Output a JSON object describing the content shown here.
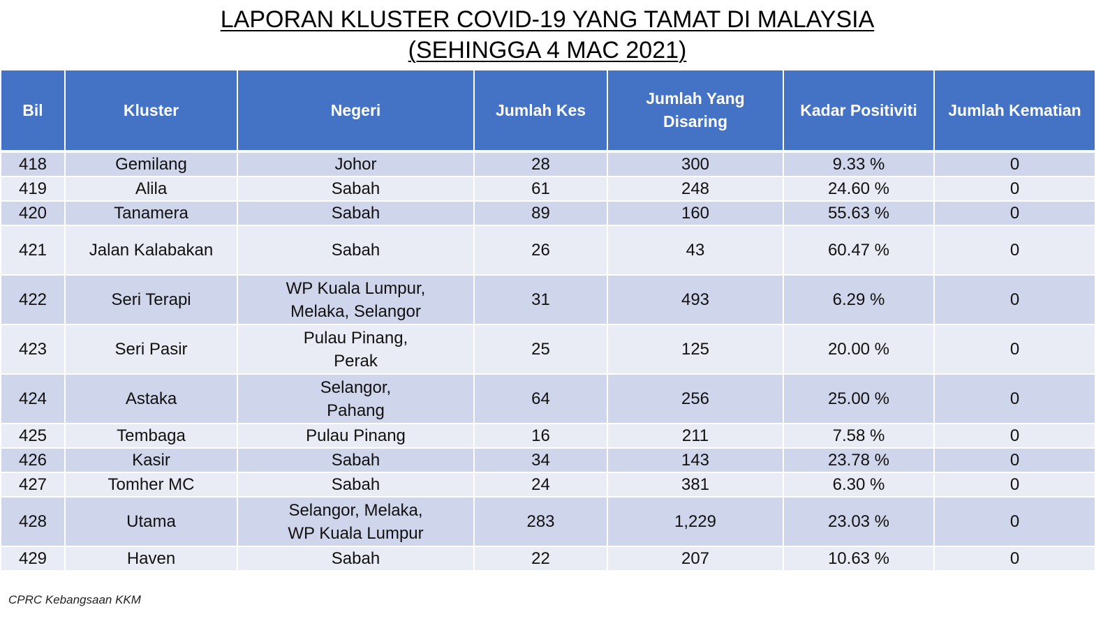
{
  "title": {
    "line1": "LAPORAN KLUSTER COVID-19 YANG TAMAT DI MALAYSIA",
    "line2": "(SEHINGGA 4 MAC 2021)"
  },
  "table": {
    "headers": [
      "Bil",
      "Kluster",
      "Negeri",
      "Jumlah Kes",
      "Jumlah Yang\nDisaring",
      "Kadar Positiviti",
      "Jumlah Kematian"
    ],
    "rows": [
      {
        "bil": "418",
        "kluster": "Gemilang",
        "negeri": "Johor",
        "kes": "28",
        "disaring": "300",
        "positiviti": "9.33 %",
        "kematian": "0"
      },
      {
        "bil": "419",
        "kluster": "Alila",
        "negeri": "Sabah",
        "kes": "61",
        "disaring": "248",
        "positiviti": "24.60 %",
        "kematian": "0"
      },
      {
        "bil": "420",
        "kluster": "Tanamera",
        "negeri": "Sabah",
        "kes": "89",
        "disaring": "160",
        "positiviti": "55.63 %",
        "kematian": "0"
      },
      {
        "bil": "421",
        "kluster": "Jalan Kalabakan",
        "negeri": "Sabah",
        "kes": "26",
        "disaring": "43",
        "positiviti": "60.47 %",
        "kematian": "0"
      },
      {
        "bil": "422",
        "kluster": "Seri Terapi",
        "negeri": "WP Kuala Lumpur,\nMelaka, Selangor",
        "kes": "31",
        "disaring": "493",
        "positiviti": "6.29 %",
        "kematian": "0"
      },
      {
        "bil": "423",
        "kluster": "Seri Pasir",
        "negeri": "Pulau Pinang,\nPerak",
        "kes": "25",
        "disaring": "125",
        "positiviti": "20.00 %",
        "kematian": "0"
      },
      {
        "bil": "424",
        "kluster": "Astaka",
        "negeri": "Selangor,\nPahang",
        "kes": "64",
        "disaring": "256",
        "positiviti": "25.00 %",
        "kematian": "0"
      },
      {
        "bil": "425",
        "kluster": "Tembaga",
        "negeri": "Pulau Pinang",
        "kes": "16",
        "disaring": "211",
        "positiviti": "7.58 %",
        "kematian": "0"
      },
      {
        "bil": "426",
        "kluster": "Kasir",
        "negeri": "Sabah",
        "kes": "34",
        "disaring": "143",
        "positiviti": "23.78 %",
        "kematian": "0"
      },
      {
        "bil": "427",
        "kluster": "Tomher MC",
        "negeri": "Sabah",
        "kes": "24",
        "disaring": "381",
        "positiviti": "6.30 %",
        "kematian": "0"
      },
      {
        "bil": "428",
        "kluster": "Utama",
        "negeri": "Selangor, Melaka,\nWP Kuala Lumpur",
        "kes": "283",
        "disaring": "1,229",
        "positiviti": "23.03 %",
        "kematian": "0"
      },
      {
        "bil": "429",
        "kluster": "Haven",
        "negeri": "Sabah",
        "kes": "22",
        "disaring": "207",
        "positiviti": "10.63 %",
        "kematian": "0"
      }
    ]
  },
  "footer": {
    "source": "CPRC Kebangsaan KKM"
  },
  "colors": {
    "header_bg": "#4472c4",
    "row_odd_bg": "#cfd5ea",
    "row_even_bg": "#e9ebf5"
  }
}
